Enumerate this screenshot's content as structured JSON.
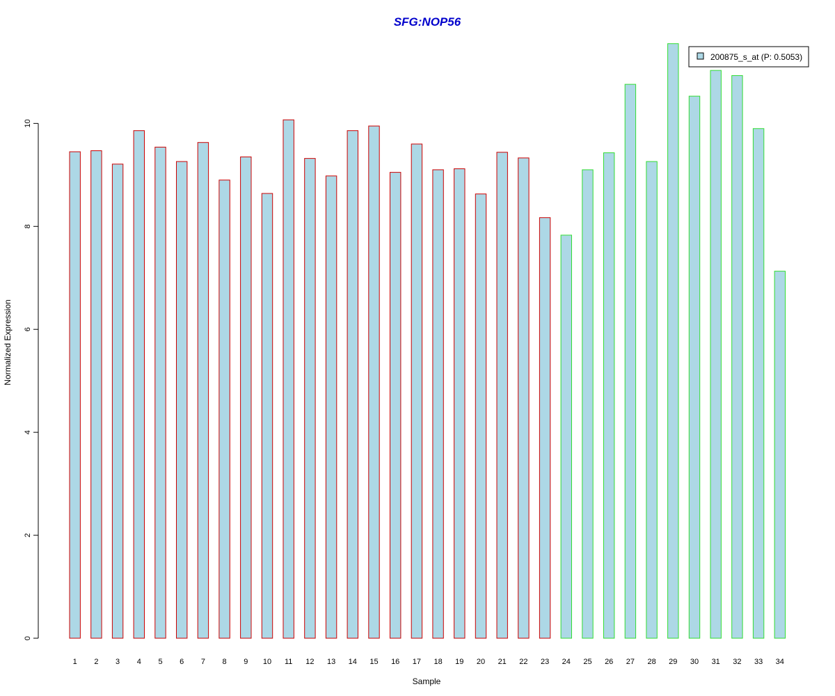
{
  "chart_data": {
    "type": "bar",
    "title": "SFG:NOP56",
    "xlabel": "Sample",
    "ylabel": "Normalized Expression",
    "ylim": [
      0,
      11.6
    ],
    "yticks": [
      0,
      2,
      4,
      6,
      8,
      10
    ],
    "grid": false,
    "legend_position": "top-right",
    "categories": [
      "1",
      "2",
      "3",
      "4",
      "5",
      "6",
      "7",
      "8",
      "9",
      "10",
      "11",
      "12",
      "13",
      "14",
      "15",
      "16",
      "17",
      "18",
      "19",
      "20",
      "21",
      "22",
      "23",
      "24",
      "25",
      "26",
      "27",
      "28",
      "29",
      "30",
      "31",
      "32",
      "33",
      "34"
    ],
    "series": [
      {
        "name": "200875_s_at (P: 0.5053)",
        "values": [
          9.45,
          9.47,
          9.21,
          9.86,
          9.54,
          9.26,
          9.63,
          8.9,
          9.35,
          8.64,
          10.07,
          9.32,
          8.98,
          9.86,
          9.95,
          9.05,
          9.6,
          9.1,
          9.12,
          8.63,
          9.44,
          9.33,
          8.17,
          7.83,
          9.1,
          9.43,
          10.76,
          9.26,
          11.55,
          10.53,
          11.03,
          10.93,
          9.9,
          7.13
        ]
      }
    ],
    "bar_outline_colors": [
      "#cc0000",
      "#cc0000",
      "#cc0000",
      "#cc0000",
      "#cc0000",
      "#cc0000",
      "#cc0000",
      "#cc0000",
      "#cc0000",
      "#cc0000",
      "#cc0000",
      "#cc0000",
      "#cc0000",
      "#cc0000",
      "#cc0000",
      "#cc0000",
      "#cc0000",
      "#cc0000",
      "#cc0000",
      "#cc0000",
      "#cc0000",
      "#cc0000",
      "#cc0000",
      "#33dd33",
      "#33dd33",
      "#33dd33",
      "#33dd33",
      "#33dd33",
      "#33dd33",
      "#33dd33",
      "#33dd33",
      "#33dd33",
      "#33dd33",
      "#33dd33"
    ]
  },
  "colors": {
    "bar_fill": "#add8e6",
    "title": "#0000cc",
    "axis": "#000000"
  }
}
